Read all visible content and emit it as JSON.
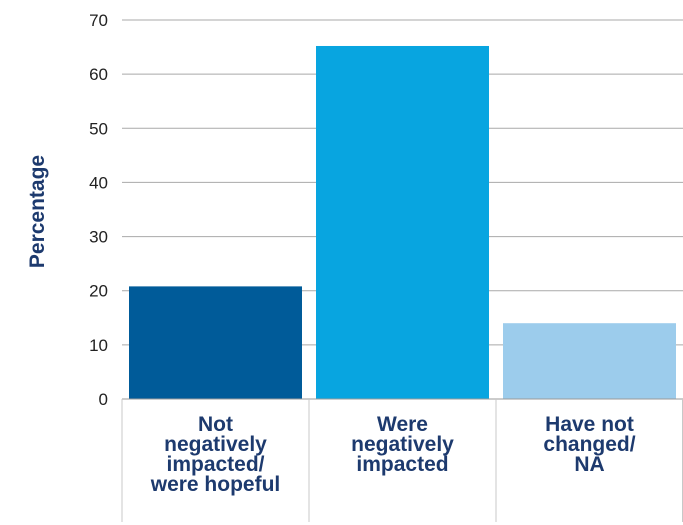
{
  "chart_data": {
    "type": "bar",
    "title": "",
    "xlabel": "",
    "ylabel": "Percentage",
    "ylim": [
      0,
      70
    ],
    "yticks": [
      0,
      10,
      20,
      30,
      40,
      50,
      60,
      70
    ],
    "grid": true,
    "categories": [
      [
        "Not",
        "negatively",
        "impacted/",
        "were hopeful"
      ],
      [
        "Were",
        "negatively",
        "impacted"
      ],
      [
        "Have not",
        "changed/",
        "NA"
      ]
    ],
    "values": [
      20.8,
      65.2,
      14.0
    ],
    "colors": [
      "#005b99",
      "#08a5e0",
      "#9cccec"
    ]
  }
}
